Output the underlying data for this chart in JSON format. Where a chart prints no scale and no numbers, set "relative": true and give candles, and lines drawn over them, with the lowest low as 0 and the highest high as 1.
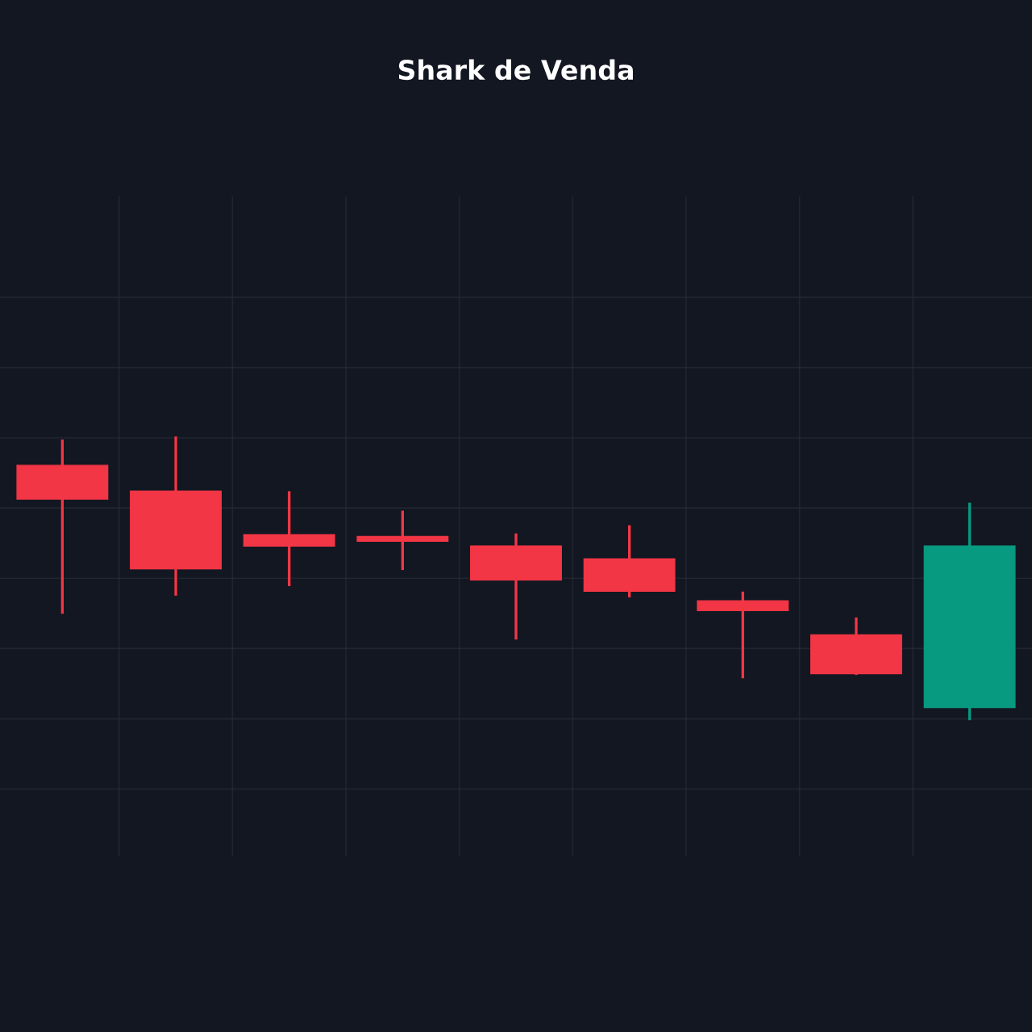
{
  "chart_data": {
    "type": "candlestick",
    "title": "Shark de Venda",
    "relative": true,
    "grid": true,
    "categories": [
      null,
      null,
      null,
      null,
      null,
      null,
      null,
      null,
      null
    ],
    "ohlc": [
      [
        0.902,
        0.989,
        0.379,
        0.782
      ],
      [
        0.81,
        1.0,
        0.443,
        0.534
      ],
      [
        0.655,
        0.805,
        0.477,
        0.615
      ],
      [
        0.649,
        0.736,
        0.534,
        0.632
      ],
      [
        0.615,
        0.655,
        0.287,
        0.494
      ],
      [
        0.569,
        0.684,
        0.437,
        0.454
      ],
      [
        0.42,
        0.448,
        0.149,
        0.385
      ],
      [
        0.299,
        0.356,
        0.161,
        0.161
      ],
      [
        0.04,
        0.764,
        0.0,
        0.615
      ]
    ],
    "colors": [
      "#f23645",
      "#f23645",
      "#f23645",
      "#f23645",
      "#f23645",
      "#f23645",
      "#f23645",
      "#f23645",
      "#089981"
    ]
  }
}
